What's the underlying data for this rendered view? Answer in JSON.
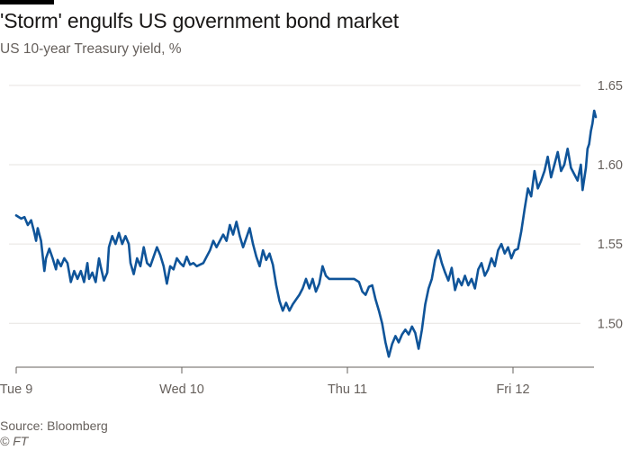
{
  "header": {
    "title": "'Storm' engulfs US government bond market",
    "subtitle": "US 10-year Treasury yield, %"
  },
  "footer": {
    "source": "Source: Bloomberg",
    "copyright": "© FT"
  },
  "colors": {
    "line": "#0f5499",
    "grid": "#e6e3e0",
    "axis": "#66605c",
    "text": "#66605c"
  },
  "chart_data": {
    "type": "line",
    "title": "'Storm' engulfs US government bond market",
    "subtitle": "US 10-year Treasury yield, %",
    "xlabel": "",
    "ylabel": "",
    "x_ticks": [
      {
        "label": "Tue 9",
        "value": 0
      },
      {
        "label": "Wed 10",
        "value": 1
      },
      {
        "label": "Thu 11",
        "value": 2
      },
      {
        "label": "Fri 12",
        "value": 3
      }
    ],
    "xlim": [
      0,
      3.5
    ],
    "ylim": [
      1.465,
      1.655
    ],
    "y_ticks": [
      1.5,
      1.55,
      1.6,
      1.65
    ],
    "y_tick_labels": [
      "1.50",
      "1.55",
      "1.60",
      "1.65"
    ],
    "y_axis_position": "right",
    "grid": true,
    "legend": "none",
    "series": [
      {
        "values": [
          [
            0.0,
            1.568
          ],
          [
            0.03,
            1.566
          ],
          [
            0.05,
            1.567
          ],
          [
            0.07,
            1.562
          ],
          [
            0.09,
            1.565
          ],
          [
            0.11,
            1.557
          ],
          [
            0.12,
            1.552
          ],
          [
            0.13,
            1.56
          ],
          [
            0.15,
            1.552
          ],
          [
            0.17,
            1.533
          ],
          [
            0.18,
            1.541
          ],
          [
            0.2,
            1.547
          ],
          [
            0.22,
            1.541
          ],
          [
            0.24,
            1.534
          ],
          [
            0.25,
            1.54
          ],
          [
            0.27,
            1.536
          ],
          [
            0.29,
            1.541
          ],
          [
            0.31,
            1.538
          ],
          [
            0.33,
            1.526
          ],
          [
            0.35,
            1.533
          ],
          [
            0.37,
            1.528
          ],
          [
            0.39,
            1.533
          ],
          [
            0.41,
            1.526
          ],
          [
            0.43,
            1.538
          ],
          [
            0.44,
            1.528
          ],
          [
            0.46,
            1.532
          ],
          [
            0.48,
            1.526
          ],
          [
            0.5,
            1.541
          ],
          [
            0.51,
            1.536
          ],
          [
            0.53,
            1.527
          ],
          [
            0.55,
            1.532
          ],
          [
            0.56,
            1.548
          ],
          [
            0.58,
            1.555
          ],
          [
            0.6,
            1.55
          ],
          [
            0.62,
            1.557
          ],
          [
            0.64,
            1.55
          ],
          [
            0.66,
            1.555
          ],
          [
            0.68,
            1.55
          ],
          [
            0.69,
            1.538
          ],
          [
            0.71,
            1.531
          ],
          [
            0.73,
            1.541
          ],
          [
            0.75,
            1.536
          ],
          [
            0.77,
            1.548
          ],
          [
            0.79,
            1.538
          ],
          [
            0.81,
            1.536
          ],
          [
            0.83,
            1.542
          ],
          [
            0.85,
            1.548
          ],
          [
            0.87,
            1.543
          ],
          [
            0.89,
            1.536
          ],
          [
            0.91,
            1.525
          ],
          [
            0.93,
            1.536
          ],
          [
            0.95,
            1.534
          ],
          [
            0.97,
            1.541
          ],
          [
            0.99,
            1.538
          ],
          [
            1.01,
            1.536
          ],
          [
            1.03,
            1.542
          ],
          [
            1.05,
            1.537
          ],
          [
            1.07,
            1.538
          ],
          [
            1.09,
            1.536
          ],
          [
            1.11,
            1.537
          ],
          [
            1.13,
            1.538
          ],
          [
            1.15,
            1.542
          ],
          [
            1.17,
            1.546
          ],
          [
            1.19,
            1.552
          ],
          [
            1.21,
            1.548
          ],
          [
            1.23,
            1.552
          ],
          [
            1.25,
            1.556
          ],
          [
            1.27,
            1.552
          ],
          [
            1.29,
            1.562
          ],
          [
            1.31,
            1.556
          ],
          [
            1.33,
            1.564
          ],
          [
            1.35,
            1.555
          ],
          [
            1.37,
            1.548
          ],
          [
            1.39,
            1.554
          ],
          [
            1.41,
            1.56
          ],
          [
            1.43,
            1.55
          ],
          [
            1.45,
            1.542
          ],
          [
            1.47,
            1.536
          ],
          [
            1.49,
            1.546
          ],
          [
            1.51,
            1.54
          ],
          [
            1.53,
            1.544
          ],
          [
            1.55,
            1.537
          ],
          [
            1.57,
            1.524
          ],
          [
            1.59,
            1.514
          ],
          [
            1.61,
            1.508
          ],
          [
            1.63,
            1.513
          ],
          [
            1.65,
            1.508
          ],
          [
            1.67,
            1.512
          ],
          [
            1.69,
            1.515
          ],
          [
            1.71,
            1.518
          ],
          [
            1.73,
            1.522
          ],
          [
            1.75,
            1.528
          ],
          [
            1.77,
            1.522
          ],
          [
            1.79,
            1.528
          ],
          [
            1.81,
            1.52
          ],
          [
            1.83,
            1.525
          ],
          [
            1.85,
            1.536
          ],
          [
            1.87,
            1.53
          ],
          [
            1.89,
            1.528
          ],
          [
            1.92,
            1.528
          ],
          [
            1.95,
            1.528
          ],
          [
            1.98,
            1.528
          ],
          [
            2.01,
            1.528
          ],
          [
            2.04,
            1.528
          ],
          [
            2.07,
            1.526
          ],
          [
            2.09,
            1.52
          ],
          [
            2.11,
            1.518
          ],
          [
            2.13,
            1.523
          ],
          [
            2.15,
            1.524
          ],
          [
            2.17,
            1.515
          ],
          [
            2.19,
            1.508
          ],
          [
            2.21,
            1.5
          ],
          [
            2.23,
            1.488
          ],
          [
            2.25,
            1.479
          ],
          [
            2.27,
            1.487
          ],
          [
            2.29,
            1.492
          ],
          [
            2.31,
            1.488
          ],
          [
            2.33,
            1.493
          ],
          [
            2.35,
            1.496
          ],
          [
            2.37,
            1.493
          ],
          [
            2.39,
            1.498
          ],
          [
            2.41,
            1.494
          ],
          [
            2.43,
            1.484
          ],
          [
            2.45,
            1.496
          ],
          [
            2.47,
            1.512
          ],
          [
            2.49,
            1.522
          ],
          [
            2.51,
            1.528
          ],
          [
            2.53,
            1.54
          ],
          [
            2.55,
            1.546
          ],
          [
            2.57,
            1.538
          ],
          [
            2.59,
            1.532
          ],
          [
            2.61,
            1.527
          ],
          [
            2.63,
            1.535
          ],
          [
            2.65,
            1.521
          ],
          [
            2.67,
            1.528
          ],
          [
            2.69,
            1.524
          ],
          [
            2.71,
            1.53
          ],
          [
            2.73,
            1.524
          ],
          [
            2.75,
            1.528
          ],
          [
            2.77,
            1.522
          ],
          [
            2.79,
            1.534
          ],
          [
            2.81,
            1.538
          ],
          [
            2.83,
            1.53
          ],
          [
            2.85,
            1.534
          ],
          [
            2.87,
            1.541
          ],
          [
            2.89,
            1.536
          ],
          [
            2.91,
            1.546
          ],
          [
            2.93,
            1.55
          ],
          [
            2.95,
            1.544
          ],
          [
            2.97,
            1.548
          ],
          [
            2.99,
            1.541
          ],
          [
            3.01,
            1.546
          ],
          [
            3.03,
            1.547
          ],
          [
            3.05,
            1.558
          ],
          [
            3.07,
            1.572
          ],
          [
            3.09,
            1.585
          ],
          [
            3.11,
            1.58
          ],
          [
            3.13,
            1.596
          ],
          [
            3.15,
            1.585
          ],
          [
            3.17,
            1.59
          ],
          [
            3.19,
            1.596
          ],
          [
            3.21,
            1.605
          ],
          [
            3.23,
            1.592
          ],
          [
            3.25,
            1.6
          ],
          [
            3.27,
            1.608
          ],
          [
            3.29,
            1.596
          ],
          [
            3.31,
            1.6
          ],
          [
            3.33,
            1.61
          ],
          [
            3.35,
            1.598
          ],
          [
            3.37,
            1.594
          ],
          [
            3.39,
            1.59
          ],
          [
            3.41,
            1.6
          ],
          [
            3.42,
            1.584
          ],
          [
            3.44,
            1.598
          ],
          [
            3.45,
            1.61
          ],
          [
            3.46,
            1.613
          ],
          [
            3.47,
            1.621
          ],
          [
            3.48,
            1.626
          ],
          [
            3.49,
            1.634
          ],
          [
            3.5,
            1.63
          ]
        ]
      }
    ]
  }
}
